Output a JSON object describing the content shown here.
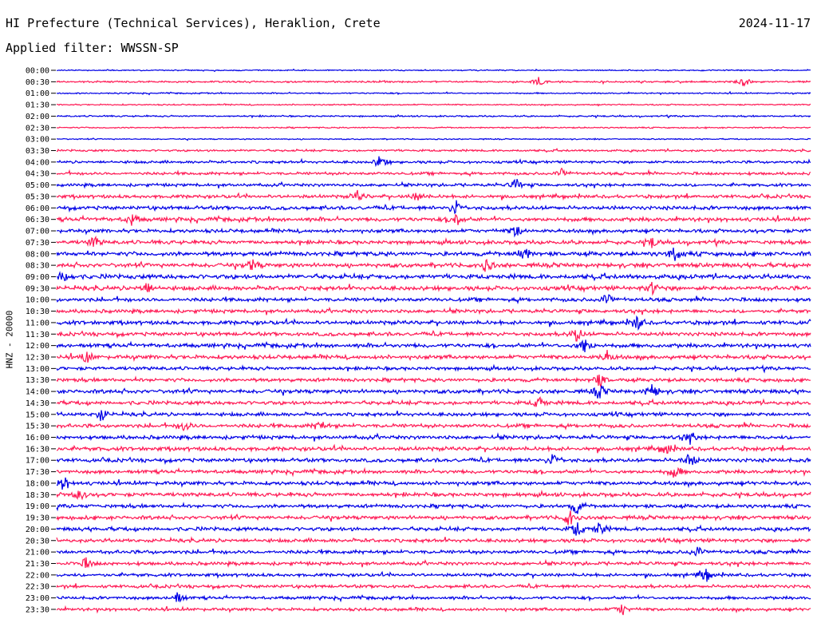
{
  "header": {
    "title": "HI Prefecture (Technical Services), Heraklion, Crete",
    "date": "2024-11-17",
    "filter": "Applied filter: WWSSN-SP"
  },
  "colors": {
    "even_trace": "#0000e6",
    "odd_trace": "#ff1a55",
    "background": "#ffffff"
  },
  "chart_data": {
    "type": "line",
    "title": "HI Prefecture (Technical Services), Heraklion, Crete",
    "ylabel": "HNZ - 20000",
    "xlabel": "",
    "grid": false,
    "rows": [
      "00:00",
      "00:30",
      "01:00",
      "01:30",
      "02:00",
      "02:30",
      "03:00",
      "03:30",
      "04:00",
      "04:30",
      "05:00",
      "05:30",
      "06:00",
      "06:30",
      "07:00",
      "07:30",
      "08:00",
      "08:30",
      "09:00",
      "09:30",
      "10:00",
      "10:30",
      "11:00",
      "11:30",
      "12:00",
      "12:30",
      "13:00",
      "13:30",
      "14:00",
      "14:30",
      "15:00",
      "15:30",
      "16:00",
      "16:30",
      "17:00",
      "17:30",
      "18:00",
      "18:30",
      "19:00",
      "19:30",
      "20:00",
      "20:30",
      "21:00",
      "21:30",
      "22:00",
      "22:30",
      "23:00",
      "23:30"
    ],
    "amplitude_level": [
      0.12,
      0.18,
      0.14,
      0.14,
      0.16,
      0.14,
      0.12,
      0.22,
      0.28,
      0.3,
      0.32,
      0.36,
      0.4,
      0.42,
      0.38,
      0.4,
      0.45,
      0.45,
      0.48,
      0.45,
      0.4,
      0.38,
      0.42,
      0.4,
      0.42,
      0.42,
      0.36,
      0.38,
      0.42,
      0.4,
      0.38,
      0.4,
      0.4,
      0.42,
      0.4,
      0.38,
      0.4,
      0.4,
      0.38,
      0.4,
      0.4,
      0.38,
      0.38,
      0.36,
      0.34,
      0.34,
      0.32,
      0.32
    ],
    "events": [
      {
        "row": "00:30",
        "at": 0.64,
        "strength": 0.8
      },
      {
        "row": "00:30",
        "at": 0.91,
        "strength": 1.0
      },
      {
        "row": "04:00",
        "at": 0.43,
        "strength": 1.3
      },
      {
        "row": "04:30",
        "at": 0.67,
        "strength": 0.9
      },
      {
        "row": "05:00",
        "at": 0.61,
        "strength": 1.0
      },
      {
        "row": "05:30",
        "at": 0.4,
        "strength": 1.0
      },
      {
        "row": "05:30",
        "at": 0.48,
        "strength": 1.0
      },
      {
        "row": "06:00",
        "at": 0.53,
        "strength": 1.5
      },
      {
        "row": "06:30",
        "at": 0.53,
        "strength": 1.2
      },
      {
        "row": "06:30",
        "at": 0.1,
        "strength": 1.0
      },
      {
        "row": "07:00",
        "at": 0.61,
        "strength": 1.0
      },
      {
        "row": "07:30",
        "at": 0.05,
        "strength": 1.0
      },
      {
        "row": "07:30",
        "at": 0.79,
        "strength": 1.0
      },
      {
        "row": "08:00",
        "at": 0.62,
        "strength": 1.3
      },
      {
        "row": "08:00",
        "at": 0.82,
        "strength": 1.3
      },
      {
        "row": "08:30",
        "at": 0.26,
        "strength": 1.0
      },
      {
        "row": "08:30",
        "at": 0.57,
        "strength": 1.2
      },
      {
        "row": "09:00",
        "at": 0.01,
        "strength": 1.2
      },
      {
        "row": "09:30",
        "at": 0.12,
        "strength": 1.0
      },
      {
        "row": "09:30",
        "at": 0.79,
        "strength": 1.0
      },
      {
        "row": "10:00",
        "at": 0.73,
        "strength": 1.3
      },
      {
        "row": "11:00",
        "at": 0.77,
        "strength": 1.3
      },
      {
        "row": "11:30",
        "at": 0.69,
        "strength": 1.3
      },
      {
        "row": "12:00",
        "at": 0.7,
        "strength": 1.5
      },
      {
        "row": "12:30",
        "at": 0.04,
        "strength": 1.0
      },
      {
        "row": "12:30",
        "at": 0.73,
        "strength": 1.0
      },
      {
        "row": "13:30",
        "at": 0.72,
        "strength": 1.2
      },
      {
        "row": "14:00",
        "at": 0.72,
        "strength": 1.4
      },
      {
        "row": "14:00",
        "at": 0.79,
        "strength": 1.3
      },
      {
        "row": "14:30",
        "at": 0.64,
        "strength": 1.0
      },
      {
        "row": "15:00",
        "at": 0.06,
        "strength": 1.2
      },
      {
        "row": "15:30",
        "at": 0.17,
        "strength": 1.0
      },
      {
        "row": "15:30",
        "at": 0.35,
        "strength": 1.0
      },
      {
        "row": "16:00",
        "at": 0.84,
        "strength": 1.1
      },
      {
        "row": "16:30",
        "at": 0.81,
        "strength": 1.0
      },
      {
        "row": "17:00",
        "at": 0.66,
        "strength": 1.3
      },
      {
        "row": "17:00",
        "at": 0.84,
        "strength": 1.3
      },
      {
        "row": "17:30",
        "at": 0.82,
        "strength": 1.2
      },
      {
        "row": "18:00",
        "at": 0.01,
        "strength": 1.3
      },
      {
        "row": "18:30",
        "at": 0.03,
        "strength": 1.0
      },
      {
        "row": "19:00",
        "at": 0.69,
        "strength": 1.4
      },
      {
        "row": "19:30",
        "at": 0.68,
        "strength": 1.5
      },
      {
        "row": "20:00",
        "at": 0.69,
        "strength": 1.3
      },
      {
        "row": "20:00",
        "at": 0.72,
        "strength": 1.2
      },
      {
        "row": "21:00",
        "at": 0.85,
        "strength": 1.1
      },
      {
        "row": "21:30",
        "at": 0.04,
        "strength": 1.0
      },
      {
        "row": "22:00",
        "at": 0.86,
        "strength": 1.3
      },
      {
        "row": "23:00",
        "at": 0.16,
        "strength": 1.0
      },
      {
        "row": "23:30",
        "at": 0.75,
        "strength": 1.0
      }
    ]
  }
}
